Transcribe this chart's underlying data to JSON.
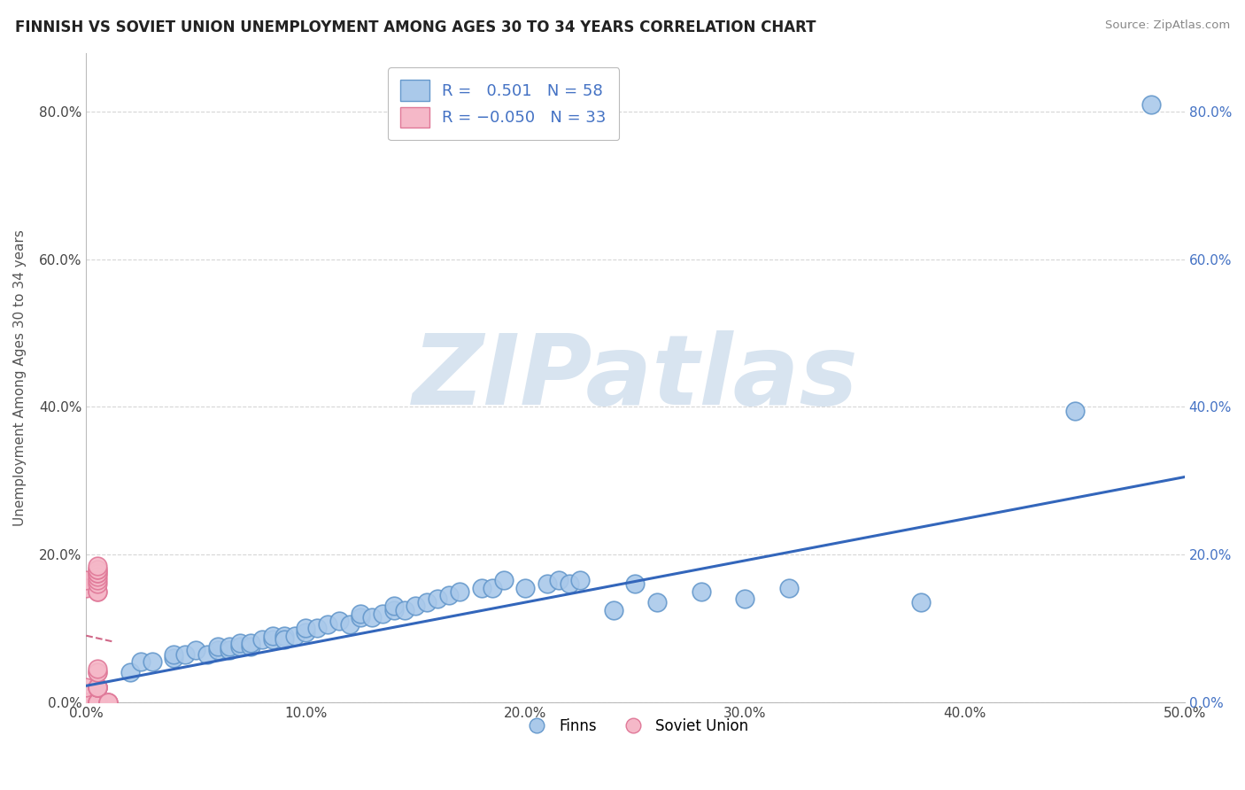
{
  "title": "FINNISH VS SOVIET UNION UNEMPLOYMENT AMONG AGES 30 TO 34 YEARS CORRELATION CHART",
  "source": "Source: ZipAtlas.com",
  "ylabel": "Unemployment Among Ages 30 to 34 years",
  "xlim": [
    0.0,
    0.5
  ],
  "ylim": [
    0.0,
    0.88
  ],
  "xtick_labels": [
    "0.0%",
    "10.0%",
    "20.0%",
    "30.0%",
    "40.0%",
    "50.0%"
  ],
  "xtick_values": [
    0.0,
    0.1,
    0.2,
    0.3,
    0.4,
    0.5
  ],
  "ytick_labels": [
    "0.0%",
    "20.0%",
    "40.0%",
    "60.0%",
    "80.0%"
  ],
  "ytick_values": [
    0.0,
    0.2,
    0.4,
    0.6,
    0.8
  ],
  "legend_label_finns": "Finns",
  "legend_label_soviet": "Soviet Union",
  "finn_color": "#aac9ea",
  "soviet_color": "#f5b8c8",
  "finn_edge_color": "#6699cc",
  "soviet_edge_color": "#e07898",
  "trend_finn_color": "#3366bb",
  "trend_soviet_color": "#d06888",
  "watermark_text": "ZIPatlas",
  "watermark_color": "#d8e4f0",
  "title_fontsize": 12,
  "axis_label_fontsize": 11,
  "tick_fontsize": 11,
  "finn_x": [
    0.005,
    0.02,
    0.025,
    0.03,
    0.04,
    0.04,
    0.045,
    0.05,
    0.055,
    0.06,
    0.06,
    0.065,
    0.065,
    0.07,
    0.07,
    0.075,
    0.075,
    0.08,
    0.085,
    0.085,
    0.09,
    0.09,
    0.095,
    0.1,
    0.1,
    0.105,
    0.11,
    0.115,
    0.12,
    0.125,
    0.125,
    0.13,
    0.135,
    0.14,
    0.14,
    0.145,
    0.15,
    0.155,
    0.16,
    0.165,
    0.17,
    0.18,
    0.185,
    0.19,
    0.2,
    0.21,
    0.215,
    0.22,
    0.225,
    0.24,
    0.25,
    0.26,
    0.28,
    0.3,
    0.32,
    0.38,
    0.45,
    0.485
  ],
  "finn_y": [
    0.02,
    0.04,
    0.055,
    0.055,
    0.06,
    0.065,
    0.065,
    0.07,
    0.065,
    0.07,
    0.075,
    0.07,
    0.075,
    0.075,
    0.08,
    0.075,
    0.08,
    0.085,
    0.085,
    0.09,
    0.09,
    0.085,
    0.09,
    0.095,
    0.1,
    0.1,
    0.105,
    0.11,
    0.105,
    0.115,
    0.12,
    0.115,
    0.12,
    0.125,
    0.13,
    0.125,
    0.13,
    0.135,
    0.14,
    0.145,
    0.15,
    0.155,
    0.155,
    0.165,
    0.155,
    0.16,
    0.165,
    0.16,
    0.165,
    0.125,
    0.16,
    0.135,
    0.15,
    0.14,
    0.155,
    0.135,
    0.395,
    0.81
  ],
  "soviet_x": [
    0.0,
    0.0,
    0.0,
    0.0,
    0.0,
    0.005,
    0.005,
    0.005,
    0.005,
    0.005,
    0.005,
    0.005,
    0.005,
    0.005,
    0.005,
    0.005,
    0.005,
    0.005,
    0.005,
    0.005,
    0.005,
    0.005,
    0.005,
    0.005,
    0.005,
    0.005,
    0.005,
    0.005,
    0.005,
    0.005,
    0.01,
    0.01,
    0.01
  ],
  "soviet_y": [
    0.0,
    0.0,
    0.02,
    0.155,
    0.165,
    0.0,
    0.0,
    0.0,
    0.0,
    0.0,
    0.0,
    0.0,
    0.02,
    0.02,
    0.02,
    0.02,
    0.02,
    0.04,
    0.04,
    0.045,
    0.15,
    0.15,
    0.16,
    0.165,
    0.17,
    0.175,
    0.175,
    0.18,
    0.18,
    0.185,
    0.0,
    0.0,
    0.0
  ],
  "finn_R": 0.501,
  "finn_N": 58,
  "soviet_R": -0.05,
  "soviet_N": 33,
  "trend_finn_x_start": 0.0,
  "trend_finn_x_end": 0.5,
  "trend_finn_y_start": 0.022,
  "trend_finn_y_end": 0.305,
  "trend_soviet_x_start": 0.0,
  "trend_soviet_x_end": 0.012,
  "trend_soviet_y_start": 0.09,
  "trend_soviet_y_end": 0.082
}
